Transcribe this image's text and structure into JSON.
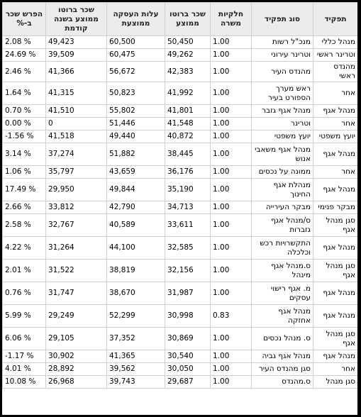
{
  "headers": [
    "תפקיד",
    "סוג תפקיד",
    "חלקיות משרה",
    "שכר ברוטו ממוצע",
    "עלות העסקה ממוצעת",
    "שכר ברוטו ממוצע בשנה קודמת",
    "הפרש שכר ב-%"
  ],
  "rows": [
    {
      "role": "מנהל כללי",
      "type": "מנכ\"ל רשות",
      "fte": "1.00",
      "gross": "50,450",
      "cost": "60,500",
      "prev": "49,423",
      "diff": "2.08 %",
      "tall": false
    },
    {
      "role": "וטרינר ראשי",
      "type": "וטרינר עירוני",
      "fte": "1.00",
      "gross": "49,262",
      "cost": "60,475",
      "prev": "39,509",
      "diff": "24.69 %",
      "tall": false
    },
    {
      "role": "מהנדס ראשי",
      "type": "מהנדס העיר",
      "fte": "1.00",
      "gross": "42,383",
      "cost": "56,672",
      "prev": "41,366",
      "diff": "2.46 %",
      "tall": false
    },
    {
      "role": "אחר",
      "type": "ראש מערך הספורט בעיר",
      "fte": "1.00",
      "gross": "41,992",
      "cost": "50,823",
      "prev": "41,315",
      "diff": "1.64 %",
      "tall": true
    },
    {
      "role": "מנהל אגף",
      "type": "מנהל אגף גזבר",
      "fte": "1.00",
      "gross": "41,801",
      "cost": "55,802",
      "prev": "41,510",
      "diff": "0.70 %",
      "tall": false
    },
    {
      "role": "אחר",
      "type": "וטרינר",
      "fte": "1.00",
      "gross": "41,548",
      "cost": "51,446",
      "prev": "0",
      "diff": "0.00 %",
      "tall": false
    },
    {
      "role": "יועץ משפטי",
      "type": "יועץ משפטי",
      "fte": "1.00",
      "gross": "40,872",
      "cost": "49,440",
      "prev": "41,518",
      "diff": "-1.56 %",
      "tall": false
    },
    {
      "role": "מנהל אגף",
      "type": "מנהל אגף משאבי אנוש",
      "fte": "1.00",
      "gross": "38,445",
      "cost": "51,882",
      "prev": "37,274",
      "diff": "3.14 %",
      "tall": true
    },
    {
      "role": "אחר",
      "type": "ממונה על נכסים",
      "fte": "1.00",
      "gross": "36,176",
      "cost": "43,659",
      "prev": "35,797",
      "diff": "1.06 %",
      "tall": false
    },
    {
      "role": "מנהל אגף",
      "type": "מנהלת אגף החינוך",
      "fte": "1.00",
      "gross": "35,190",
      "cost": "49,844",
      "prev": "29,950",
      "diff": "17.49 %",
      "tall": true
    },
    {
      "role": "מבקר פנימי",
      "type": "מבקר העירייה",
      "fte": "1.00",
      "gross": "34,713",
      "cost": "42,790",
      "prev": "33,812",
      "diff": "2.66 %",
      "tall": false
    },
    {
      "role": "סגן מנהל אגף",
      "type": "ס/מנהל אגף גזברות",
      "fte": "1.00",
      "gross": "33,611",
      "cost": "40,589",
      "prev": "32,767",
      "diff": "2.58 %",
      "tall": true
    },
    {
      "role": "מנהל אגף",
      "type": "התקשרויות רכש וכלכלה",
      "fte": "1.00",
      "gross": "32,585",
      "cost": "44,100",
      "prev": "31,264",
      "diff": "4.22 %",
      "tall": true
    },
    {
      "role": "סגן מנהל אגף",
      "type": "ס.מנהל אגף מינהל",
      "fte": "1.00",
      "gross": "32,156",
      "cost": "38,819",
      "prev": "31,522",
      "diff": "2.01 %",
      "tall": true
    },
    {
      "role": "מנהל אגף",
      "type": "מ. אגף רישוי עסקים",
      "fte": "1.00",
      "gross": "31,987",
      "cost": "38,670",
      "prev": "31,747",
      "diff": "0.76 %",
      "tall": true
    },
    {
      "role": "מנהל אגף",
      "type": "מנהל אגף אחזקה",
      "fte": "0.83",
      "gross": "30,998",
      "cost": "52,299",
      "prev": "29,249",
      "diff": "5.99 %",
      "tall": true
    },
    {
      "role": "סגן מנהל אגף",
      "type": "ס. מנהל נכסים",
      "fte": "1.00",
      "gross": "30,869",
      "cost": "37,352",
      "prev": "29,105",
      "diff": "6.06 %",
      "tall": true
    },
    {
      "role": "מנהל אגף",
      "type": "מנהל אגף גביה",
      "fte": "1.00",
      "gross": "30,540",
      "cost": "41,365",
      "prev": "30,902",
      "diff": "-1.17 %",
      "tall": false
    },
    {
      "role": "אחר",
      "type": "סגן מהנדס העיר",
      "fte": "1.00",
      "gross": "30,050",
      "cost": "39,562",
      "prev": "28,892",
      "diff": "4.01 %",
      "tall": false
    },
    {
      "role": "סגן מנהל",
      "type": "ס.מהנדס",
      "fte": "1.00",
      "gross": "29,687",
      "cost": "39,743",
      "prev": "26,968",
      "diff": "10.08 %",
      "tall": false
    }
  ]
}
